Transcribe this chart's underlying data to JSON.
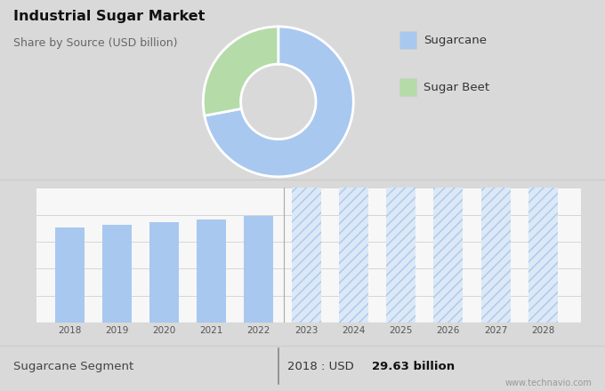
{
  "title": "Industrial Sugar Market",
  "subtitle": "Share by Source (USD billion)",
  "pie_values": [
    72,
    28
  ],
  "pie_labels": [
    "Sugarcane",
    "Sugar Beet"
  ],
  "pie_colors": [
    "#a8c8f0",
    "#b5dba8"
  ],
  "bar_years_solid": [
    2018,
    2019,
    2020,
    2021,
    2022
  ],
  "bar_values_solid": [
    29.63,
    30.5,
    31.2,
    32.1,
    33.2
  ],
  "bar_years_forecast": [
    2023,
    2024,
    2025,
    2026,
    2027,
    2028
  ],
  "bar_color_solid": "#a8c8f0",
  "bg_color_top": "#d9d9d9",
  "bg_color_bottom": "#f0f0f0",
  "bar_chart_bg": "#f7f7f7",
  "footer_left": "Sugarcane Segment",
  "footer_value_prefix": "2018 : USD ",
  "footer_value_bold": "29.63 billion",
  "watermark": "www.technavio.com",
  "ylim": [
    0,
    42
  ],
  "hatch_color": "#a8c8f0"
}
